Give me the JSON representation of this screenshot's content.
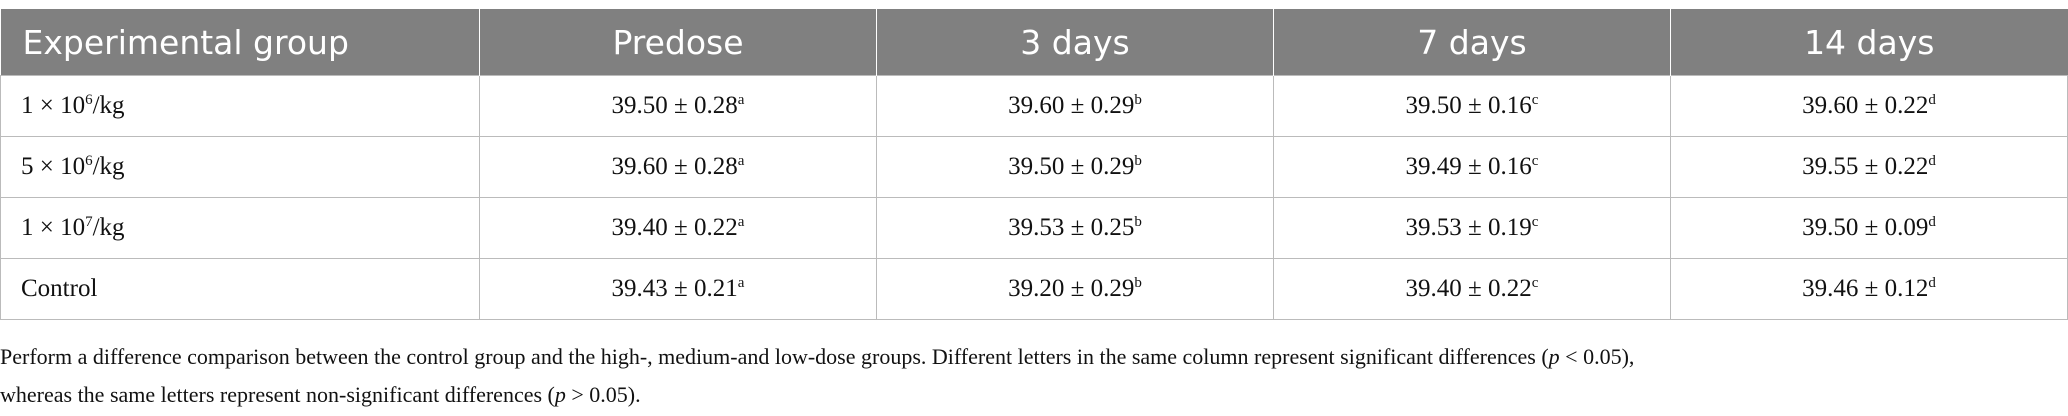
{
  "table": {
    "header": [
      "Experimental group",
      "Predose",
      "3 days",
      "7 days",
      "14 days"
    ],
    "rows": [
      {
        "label": {
          "pre": "1 × 10",
          "sup": "6",
          "post": "/kg"
        },
        "cells": [
          {
            "text": "39.50 ± 0.28",
            "sup": "a"
          },
          {
            "text": "39.60 ± 0.29",
            "sup": "b"
          },
          {
            "text": "39.50 ± 0.16",
            "sup": "c"
          },
          {
            "text": "39.60 ± 0.22",
            "sup": "d"
          }
        ]
      },
      {
        "label": {
          "pre": "5 × 10",
          "sup": "6",
          "post": "/kg"
        },
        "cells": [
          {
            "text": "39.60 ± 0.28",
            "sup": "a"
          },
          {
            "text": "39.50 ± 0.29",
            "sup": "b"
          },
          {
            "text": "39.49 ± 0.16",
            "sup": "c"
          },
          {
            "text": "39.55 ± 0.22",
            "sup": "d"
          }
        ]
      },
      {
        "label": {
          "pre": "1 × 10",
          "sup": "7",
          "post": "/kg"
        },
        "cells": [
          {
            "text": "39.40 ± 0.22",
            "sup": "a"
          },
          {
            "text": "39.53 ± 0.25",
            "sup": "b"
          },
          {
            "text": "39.53 ± 0.19",
            "sup": "c"
          },
          {
            "text": "39.50 ± 0.09",
            "sup": "d"
          }
        ]
      },
      {
        "label": {
          "pre": "Control"
        },
        "cells": [
          {
            "text": "39.43 ± 0.21",
            "sup": "a"
          },
          {
            "text": "39.20 ± 0.29",
            "sup": "b"
          },
          {
            "text": "39.40 ± 0.22",
            "sup": "c"
          },
          {
            "text": "39.46 ± 0.12",
            "sup": "d"
          }
        ]
      }
    ]
  },
  "footnote": [
    [
      "Perform a difference comparison between the control group and the high-, medium-and low-dose groups. Different letters in the same column represent significant differences (",
      {
        "em": "p"
      },
      " < 0.05),"
    ],
    [
      "whereas the same letters represent non-significant differences (",
      {
        "em": "p"
      },
      " > 0.05)."
    ]
  ]
}
